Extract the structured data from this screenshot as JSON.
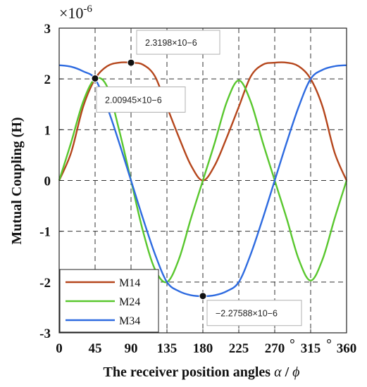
{
  "chart_data": {
    "type": "line",
    "title": "",
    "xlabel_prefix": "The receiver position angles ",
    "xlabel_alpha": "α",
    "xlabel_sep": " / ",
    "xlabel_phi": "ϕ",
    "ylabel": "Mutual Coupling (H)",
    "exponent_prefix": "×10",
    "exponent_power": "-6",
    "xlim": [
      0,
      360
    ],
    "ylim": [
      -3,
      3
    ],
    "x_ticks": [
      0,
      45,
      90,
      135,
      180,
      225,
      270,
      315,
      360
    ],
    "x_tick_labels": [
      "0",
      "45",
      "90",
      "135",
      "180",
      "225",
      "270",
      "315",
      "360"
    ],
    "degree_marks": [
      "°",
      "°"
    ],
    "y_ticks": [
      -3,
      -2,
      -1,
      0,
      1,
      2,
      3
    ],
    "y_tick_labels": [
      "-3",
      "-2",
      "-1",
      "0",
      "1",
      "2",
      "3"
    ],
    "grid": true,
    "legend_position": "bottom-left",
    "x": [
      0,
      15,
      30,
      45,
      60,
      75,
      90,
      105,
      120,
      135,
      150,
      165,
      180,
      195,
      210,
      225,
      240,
      255,
      270,
      285,
      300,
      315,
      330,
      345,
      360
    ],
    "series": [
      {
        "name": "M14",
        "color": "#b5461c",
        "values": [
          0,
          0.55,
          1.45,
          2.0,
          2.25,
          2.32,
          2.32,
          2.28,
          2.05,
          1.45,
          0.85,
          0.3,
          0,
          0.3,
          0.85,
          1.45,
          2.05,
          2.28,
          2.32,
          2.32,
          2.25,
          2.0,
          1.45,
          0.55,
          0
        ]
      },
      {
        "name": "M24",
        "color": "#59c72e",
        "values": [
          0,
          0.75,
          1.55,
          2.0,
          1.85,
          1.0,
          0,
          -1.0,
          -1.75,
          -2.0,
          -1.55,
          -0.75,
          0,
          0.75,
          1.55,
          1.97,
          1.55,
          0.75,
          0,
          -0.75,
          -1.55,
          -1.97,
          -1.55,
          -0.75,
          0
        ]
      },
      {
        "name": "M34",
        "color": "#2e6be0",
        "values": [
          2.27,
          2.24,
          2.15,
          2.0,
          1.45,
          0.75,
          0,
          -0.75,
          -1.45,
          -2.0,
          -2.18,
          -2.26,
          -2.28,
          -2.26,
          -2.18,
          -2.0,
          -1.45,
          -0.75,
          0,
          0.75,
          1.45,
          2.0,
          2.18,
          2.25,
          2.27
        ]
      }
    ],
    "annotations": [
      {
        "x": 90,
        "y": 2.3198,
        "label": "2.3198×10−6"
      },
      {
        "x": 45,
        "y": 2.00945,
        "label": "2.00945×10−6"
      },
      {
        "x": 180,
        "y": -2.27588,
        "label": "−2.27588×10−6"
      }
    ]
  }
}
